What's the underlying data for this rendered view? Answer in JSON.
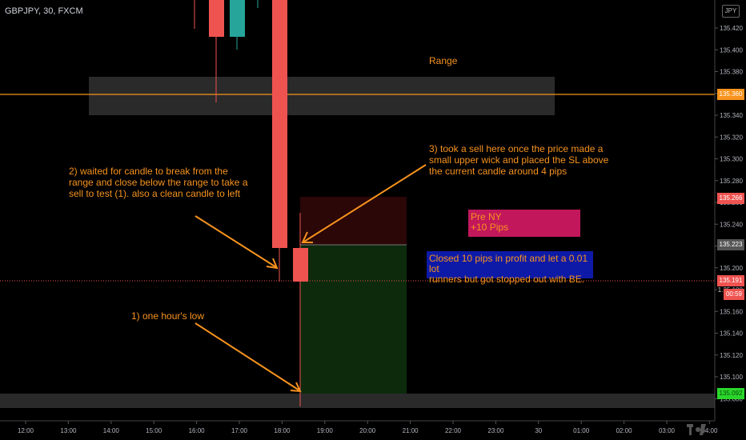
{
  "header": {
    "symbol": "GBPJPY, 30, FXCM",
    "currency": "JPY"
  },
  "colors": {
    "bull": "#26a69a",
    "bear": "#ef5350",
    "accent": "#f7931e",
    "grid": "#1e1e1e"
  },
  "y_axis": {
    "ticks": [
      "135.420",
      "135.400",
      "135.380",
      "135.360",
      "135.340",
      "135.320",
      "135.300",
      "135.280",
      "135.260",
      "135.240",
      "135.220",
      "135.200",
      "135.180",
      "135.160",
      "135.140",
      "135.120",
      "135.100",
      "135.080"
    ]
  },
  "x_axis": {
    "ticks": [
      "12:00",
      "13:00",
      "14:00",
      "15:00",
      "16:00",
      "17:00",
      "18:00",
      "19:00",
      "20:00",
      "21:00",
      "22:00",
      "23:00",
      "30",
      "01:00",
      "02:00",
      "03:00",
      "04:00"
    ]
  },
  "price_tags": {
    "range_level": "135.360",
    "stop_loss": "135.266",
    "entry": "135.223",
    "current": "135.191",
    "countdown": "00:59",
    "take_profit": "135.092",
    "hidden": "1"
  },
  "annotations": {
    "range": "Range",
    "note2_line1": "2) waited for candle to break from the",
    "note2_line2": "range and close below the range to take a",
    "note2_line3": "sell to test (1). also a clean candle to left",
    "note3_line1": "3) took a sell here once the price made a",
    "note3_line2": "small upper wick and placed the SL above",
    "note3_line3": "the current candle around 4 pips",
    "note1": "1) one hour's low",
    "pre_ny_line1": "Pre NY",
    "pre_ny_line2": "+10 Pips",
    "closed_line1": "Closed 10 pips in profit and let a 0.01 lot",
    "closed_line2": "runners but got stopped out with BE."
  },
  "icons": {
    "logo": "tv-logo-icon"
  }
}
